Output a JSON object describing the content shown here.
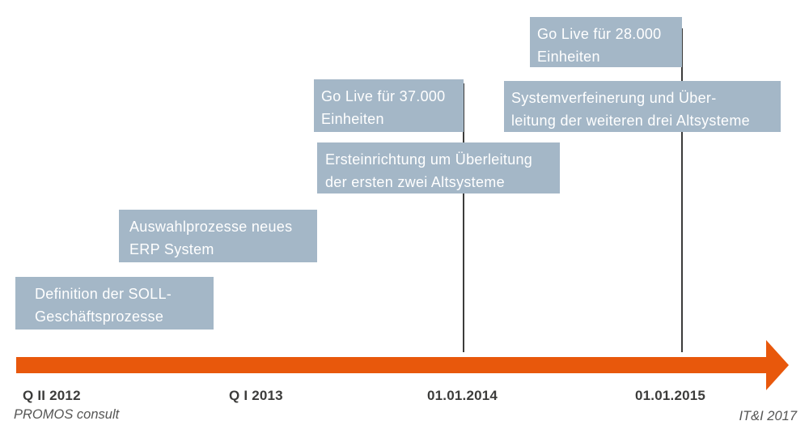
{
  "timeline": {
    "type": "timeline",
    "phases": [
      {
        "id": "definition",
        "lines": [
          "Definition der SOLL-",
          "Geschäftsprozesse"
        ]
      },
      {
        "id": "auswahl",
        "lines": [
          "Auswahlprozesse neues",
          "ERP System"
        ]
      },
      {
        "id": "golive37",
        "lines": [
          "Go Live für 37.000",
          "Einheiten"
        ]
      },
      {
        "id": "ersteinrichtung",
        "lines": [
          "Ersteinrichtung um Überleitung",
          "der ersten zwei Altsysteme"
        ]
      },
      {
        "id": "golive28",
        "lines": [
          "Go Live für 28.000",
          "Einheiten"
        ]
      },
      {
        "id": "systemverfeinerung",
        "lines": [
          "Systemverfeinerung und Über-",
          "leitung der weiteren drei Altsysteme"
        ]
      }
    ],
    "axis_labels": [
      "Q II 2012",
      "Q I 2013",
      "01.01.2014",
      "01.01.2015"
    ],
    "milestones": [
      "01.01.2014",
      "01.01.2015"
    ]
  },
  "footer": {
    "left": "PROMOS consult",
    "right": "IT&I 2017"
  },
  "colors": {
    "phase_box": "#a4b7c7",
    "phase_text": "#ffffff",
    "arrow": "#e8580c",
    "axis_text": "#3c3c3b",
    "milestone_line": "#3c3c3b",
    "credit_text": "#565655"
  }
}
